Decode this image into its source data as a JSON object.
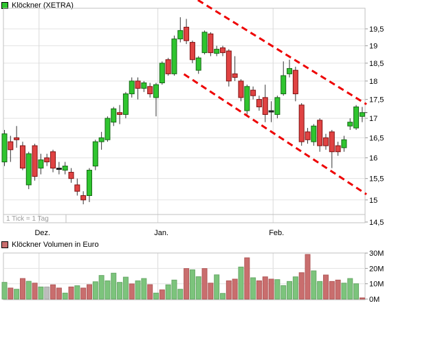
{
  "header": {
    "instrument": "Klöckner (XETRA)",
    "swatch_color": "#2fc52f"
  },
  "volume_header": {
    "label": "Klöckner Volumen in Euro",
    "swatch_color": "#c96e6e"
  },
  "colors": {
    "candle_up_fill": "#2fc52f",
    "candle_up_stroke": "#156815",
    "candle_down_fill": "#e04343",
    "candle_down_stroke": "#801010",
    "candle_neutral": "#222222",
    "wick": "#333333",
    "vol_up": "#7cc47c",
    "vol_up_stroke": "#69a869",
    "vol_down": "#c96e6e",
    "vol_down_stroke": "#b15858",
    "vol_gray": "#bdbdbd",
    "vol_gray_stroke": "#a8a8a8",
    "grid": "#e3e3e3",
    "month_line": "#d9d9d9",
    "border": "#c0c0c0",
    "trend": "#ee0000",
    "axis_text": "#000000",
    "tick_note_text": "#9a9a9a"
  },
  "chart_data": [
    {
      "type": "candlestick",
      "title": "Klöckner (XETRA)",
      "scale": "log",
      "ylim": [
        14.5,
        20.1
      ],
      "grid": true,
      "tick_note": "1 Tick = 1 Tag",
      "y_ticks": [
        {
          "label": "19,5",
          "value": 19.5
        },
        {
          "label": "19",
          "value": 19
        },
        {
          "label": "18,5",
          "value": 18.5
        },
        {
          "label": "18",
          "value": 18
        },
        {
          "label": "17,5",
          "value": 17.5
        },
        {
          "label": "17",
          "value": 17
        },
        {
          "label": "16,5",
          "value": 16.5
        },
        {
          "label": "16",
          "value": 16
        },
        {
          "label": "15,5",
          "value": 15.5
        },
        {
          "label": "15",
          "value": 15
        },
        {
          "label": "14,5",
          "value": 14.5
        }
      ],
      "x_months": [
        {
          "label": "Dez.",
          "index": 5.7
        },
        {
          "label": "Jan.",
          "index": 25.3
        },
        {
          "label": "Feb.",
          "index": 44.3
        }
      ],
      "candles": [
        [
          15.9,
          16.7,
          15.8,
          16.6,
          "g"
        ],
        [
          16.4,
          16.55,
          15.9,
          16.2,
          "r"
        ],
        [
          16.5,
          16.8,
          16.25,
          16.45,
          "r"
        ],
        [
          16.3,
          16.4,
          15.7,
          15.75,
          "r"
        ],
        [
          15.35,
          16.15,
          15.25,
          16.1,
          "g"
        ],
        [
          16.3,
          16.35,
          15.45,
          15.55,
          "r"
        ],
        [
          15.75,
          16.1,
          15.6,
          15.95,
          "g"
        ],
        [
          16.0,
          16.1,
          15.8,
          15.9,
          "r"
        ],
        [
          16.15,
          16.2,
          15.65,
          15.75,
          "r"
        ],
        [
          15.75,
          15.9,
          15.6,
          15.75,
          "k"
        ],
        [
          15.7,
          15.9,
          15.6,
          15.8,
          "g"
        ],
        [
          15.65,
          15.75,
          15.4,
          15.5,
          "r"
        ],
        [
          15.35,
          15.5,
          15.1,
          15.2,
          "r"
        ],
        [
          15.1,
          15.2,
          14.9,
          15.0,
          "r"
        ],
        [
          15.1,
          15.75,
          14.95,
          15.7,
          "g"
        ],
        [
          15.8,
          16.45,
          15.7,
          16.4,
          "g"
        ],
        [
          16.4,
          16.65,
          16.2,
          16.5,
          "g"
        ],
        [
          16.45,
          17.05,
          16.4,
          17.0,
          "g"
        ],
        [
          16.9,
          17.3,
          16.8,
          17.25,
          "g"
        ],
        [
          17.15,
          17.35,
          16.85,
          17.1,
          "r"
        ],
        [
          17.1,
          17.7,
          17.0,
          17.65,
          "g"
        ],
        [
          17.65,
          18.1,
          17.55,
          18.0,
          "g"
        ],
        [
          18.0,
          18.1,
          17.5,
          17.8,
          "r"
        ],
        [
          17.8,
          18.0,
          17.7,
          17.95,
          "g"
        ],
        [
          17.85,
          17.95,
          17.55,
          17.65,
          "r"
        ],
        [
          17.55,
          17.95,
          17.05,
          17.9,
          "g"
        ],
        [
          17.95,
          18.55,
          17.9,
          18.5,
          "g"
        ],
        [
          18.6,
          18.65,
          18.15,
          18.2,
          "r"
        ],
        [
          18.2,
          19.3,
          18.15,
          19.2,
          "g"
        ],
        [
          19.2,
          19.85,
          19.1,
          19.45,
          "g"
        ],
        [
          19.55,
          19.8,
          19.05,
          19.15,
          "r"
        ],
        [
          19.1,
          19.15,
          18.5,
          18.6,
          "r"
        ],
        [
          18.3,
          18.7,
          18.2,
          18.65,
          "g"
        ],
        [
          18.8,
          19.45,
          18.75,
          19.4,
          "g"
        ],
        [
          19.35,
          19.4,
          18.7,
          18.8,
          "r"
        ],
        [
          18.78,
          19.0,
          18.7,
          18.9,
          "g"
        ],
        [
          18.94,
          19.0,
          18.7,
          18.8,
          "r"
        ],
        [
          18.85,
          18.9,
          17.85,
          18.0,
          "r"
        ],
        [
          18.2,
          18.7,
          18.0,
          18.1,
          "r"
        ],
        [
          18.0,
          18.05,
          17.45,
          17.55,
          "r"
        ],
        [
          17.2,
          17.9,
          17.1,
          17.85,
          "g"
        ],
        [
          17.75,
          17.85,
          17.5,
          17.6,
          "r"
        ],
        [
          17.5,
          17.6,
          17.2,
          17.3,
          "r"
        ],
        [
          17.55,
          17.9,
          16.9,
          17.1,
          "r"
        ],
        [
          17.2,
          17.45,
          16.9,
          17.2,
          "k"
        ],
        [
          17.1,
          17.6,
          17.0,
          17.55,
          "g"
        ],
        [
          17.65,
          18.55,
          17.6,
          18.15,
          "g"
        ],
        [
          18.2,
          18.6,
          18.1,
          18.35,
          "g"
        ],
        [
          18.3,
          18.4,
          17.45,
          17.65,
          "r"
        ],
        [
          17.35,
          17.4,
          16.3,
          16.4,
          "r"
        ],
        [
          16.65,
          16.75,
          16.35,
          16.45,
          "r"
        ],
        [
          16.4,
          16.85,
          16.3,
          16.8,
          "g"
        ],
        [
          16.95,
          17.0,
          16.15,
          16.3,
          "r"
        ],
        [
          16.5,
          16.6,
          16.2,
          16.3,
          "r"
        ],
        [
          16.65,
          16.7,
          15.75,
          16.15,
          "r"
        ],
        [
          16.3,
          16.4,
          16.05,
          16.15,
          "r"
        ],
        [
          16.25,
          16.55,
          16.15,
          16.45,
          "g"
        ],
        [
          16.8,
          17.0,
          16.7,
          16.9,
          "g"
        ],
        [
          16.75,
          17.35,
          16.7,
          17.3,
          "g"
        ],
        [
          17.05,
          17.3,
          16.9,
          17.15,
          "g"
        ]
      ],
      "last_close_marker": true,
      "trendlines": {
        "color": "#ee0000",
        "style": "dashed",
        "lines": [
          {
            "i1": 31.9,
            "p1": 20.38,
            "i2": 59.7,
            "p2": 17.37
          },
          {
            "i1": 29.6,
            "p1": 18.19,
            "i2": 59.7,
            "p2": 15.13
          }
        ]
      }
    },
    {
      "type": "bar",
      "title": "Klöckner Volumen in Euro",
      "unit": "M",
      "ylim": [
        0,
        30
      ],
      "y_ticks": [
        {
          "label": "30M",
          "value": 30
        },
        {
          "label": "20M",
          "value": 20
        },
        {
          "label": "10M",
          "value": 10
        },
        {
          "label": "0M",
          "value": 0
        }
      ],
      "values": [
        10.9,
        7.2,
        6.4,
        13.4,
        11.6,
        10.4,
        7.9,
        7.9,
        9.3,
        7.2,
        3.9,
        7.9,
        8.7,
        7.2,
        9.4,
        11.3,
        15.4,
        11.9,
        16.9,
        10.9,
        14.3,
        9.9,
        11.9,
        13.4,
        9.4,
        3.9,
        6.0,
        9.3,
        12.4,
        6.4,
        19.9,
        19.1,
        14.6,
        19.9,
        10.4,
        15.8,
        3.7,
        11.9,
        13.0,
        20.9,
        26.9,
        13.9,
        11.9,
        14.5,
        13.0,
        12.7,
        8.8,
        11.5,
        14.5,
        17.2,
        29.1,
        18.4,
        11.5,
        15.7,
        11.5,
        12.4,
        10.4,
        13.4,
        10.0,
        0.8
      ],
      "colors": [
        "g",
        "r",
        "g",
        "r",
        "g",
        "r",
        "g",
        "x",
        "r",
        "r",
        "g",
        "r",
        "g",
        "r",
        "r",
        "g",
        "g",
        "g",
        "g",
        "g",
        "g",
        "r",
        "g",
        "g",
        "r",
        "g",
        "r",
        "g",
        "g",
        "g",
        "r",
        "g",
        "g",
        "r",
        "r",
        "g",
        "g",
        "r",
        "r",
        "g",
        "r",
        "g",
        "r",
        "r",
        "r",
        "g",
        "g",
        "g",
        "g",
        "r",
        "r",
        "g",
        "g",
        "r",
        "r",
        "r",
        "g",
        "g",
        "g",
        "r"
      ]
    }
  ]
}
